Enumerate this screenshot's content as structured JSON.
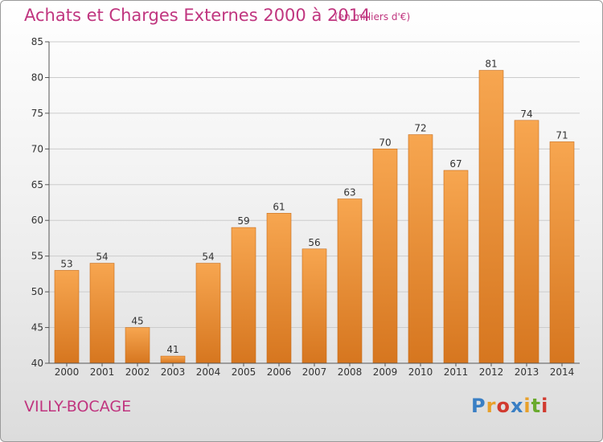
{
  "header": {
    "title": "Achats et Charges Externes 2000 à 2014",
    "subtitle": "(en milliers d'€)"
  },
  "footer": {
    "commune": "VILLY-BOCAGE",
    "logo_text": "Proxiti",
    "logo_colors": [
      "#3a7fc4",
      "#e8a02a",
      "#d13a2f",
      "#3a7fc4",
      "#e8a02a",
      "#6aaa2e",
      "#d13a2f"
    ]
  },
  "colors": {
    "bar_top": "#f7a650",
    "bar_bottom": "#d6761f",
    "bar_edge": "#c76d1c",
    "grid": "#cccccc",
    "text_accent": "#c0357f"
  },
  "chart_data": {
    "type": "bar",
    "title": "Achats et Charges Externes 2000 à 2014",
    "subtitle": "(en milliers d'€)",
    "categories": [
      "2000",
      "2001",
      "2002",
      "2003",
      "2004",
      "2005",
      "2006",
      "2007",
      "2008",
      "2009",
      "2010",
      "2011",
      "2012",
      "2013",
      "2014"
    ],
    "values": [
      53,
      54,
      45,
      41,
      54,
      59,
      61,
      56,
      63,
      70,
      72,
      67,
      81,
      74,
      71
    ],
    "ylim": [
      40,
      85
    ],
    "yticks": [
      40,
      45,
      50,
      55,
      60,
      65,
      70,
      75,
      80,
      85
    ],
    "grid": true,
    "legend": "none"
  }
}
